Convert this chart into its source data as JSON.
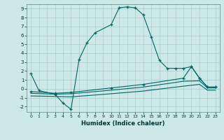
{
  "xlabel": "Humidex (Indice chaleur)",
  "background_color": "#cce8e8",
  "grid_color": "#aacccc",
  "line_color": "#006666",
  "main_x": [
    0,
    1,
    3,
    4,
    5,
    6,
    7,
    8,
    10,
    11,
    12,
    13,
    14,
    15,
    16,
    17,
    18,
    19,
    20,
    21,
    22,
    23
  ],
  "main_y": [
    1.7,
    -0.2,
    -0.6,
    -1.6,
    -2.3,
    3.3,
    5.2,
    6.3,
    7.2,
    9.1,
    9.2,
    9.1,
    8.3,
    5.8,
    3.2,
    2.3,
    2.3,
    2.3,
    2.5,
    1.2,
    0.2,
    0.2
  ],
  "flat1_x": [
    0,
    3,
    5,
    10,
    14,
    19,
    20,
    21,
    22,
    23
  ],
  "flat1_y": [
    -0.3,
    -0.5,
    -0.4,
    0.1,
    0.5,
    1.2,
    2.5,
    1.2,
    0.2,
    0.2
  ],
  "flat2_x": [
    0,
    3,
    5,
    10,
    14,
    19,
    21,
    22,
    23
  ],
  "flat2_y": [
    -0.5,
    -0.6,
    -0.55,
    -0.15,
    0.2,
    0.85,
    0.9,
    0.1,
    0.1
  ],
  "flat3_x": [
    0,
    3,
    5,
    10,
    14,
    19,
    21,
    22,
    23
  ],
  "flat3_y": [
    -0.8,
    -0.85,
    -0.9,
    -0.55,
    -0.25,
    0.3,
    0.5,
    -0.15,
    -0.15
  ],
  "ylim": [
    -2.6,
    9.5
  ],
  "xlim": [
    -0.5,
    23.5
  ],
  "yticks": [
    -2,
    -1,
    0,
    1,
    2,
    3,
    4,
    5,
    6,
    7,
    8,
    9
  ],
  "xticks": [
    0,
    1,
    2,
    3,
    4,
    5,
    6,
    7,
    8,
    9,
    10,
    11,
    12,
    13,
    14,
    15,
    16,
    17,
    18,
    19,
    20,
    21,
    22,
    23
  ]
}
